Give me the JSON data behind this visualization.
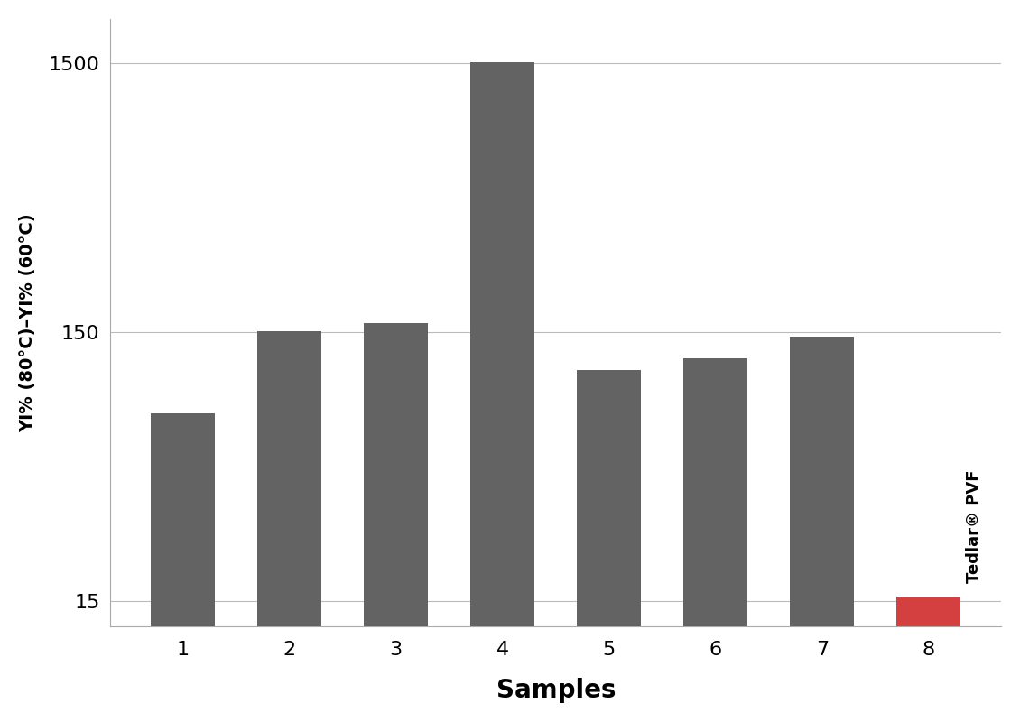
{
  "categories": [
    "1",
    "2",
    "3",
    "4",
    "5",
    "6",
    "7",
    "8"
  ],
  "values": [
    75,
    151,
    162,
    1520,
    108,
    120,
    144,
    15.5
  ],
  "bar_colors": [
    "#636363",
    "#636363",
    "#636363",
    "#636363",
    "#636363",
    "#636363",
    "#636363",
    "#d44040"
  ],
  "ylabel": "YI% (80°C)–YI% (60°C)",
  "xlabel": "Samples",
  "yticks": [
    15,
    150,
    1500
  ],
  "ylim_log": [
    12,
    2200
  ],
  "background_color": "#ffffff",
  "bar8_label": "Tedlar® PVF",
  "grid_color": "#bbbbbb",
  "bar_width": 0.6,
  "xlabel_fontsize": 20,
  "ylabel_fontsize": 14,
  "tick_fontsize": 16,
  "label_fontsize": 13
}
